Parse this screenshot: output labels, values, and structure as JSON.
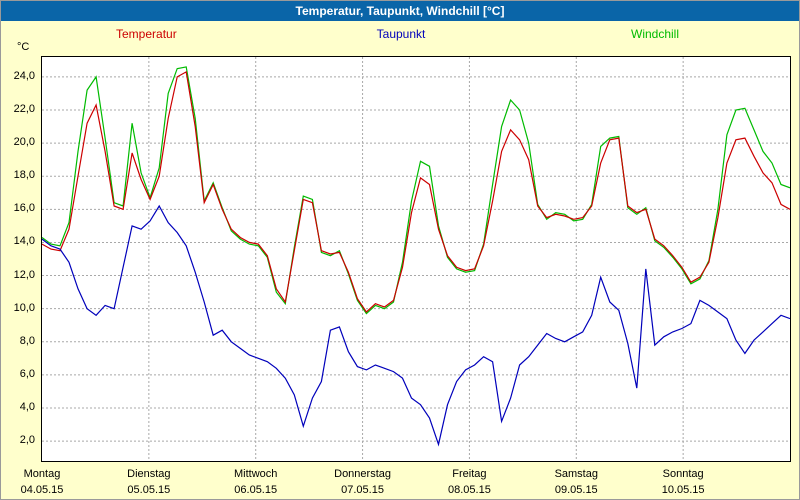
{
  "window": {
    "title": "Temperatur, Taupunkt, Windchill [°C]"
  },
  "legend": [
    {
      "label": "Temperatur",
      "color": "#cc0000"
    },
    {
      "label": "Taupunkt",
      "color": "#0000bb"
    },
    {
      "label": "Windchill",
      "color": "#00bb00"
    }
  ],
  "chart_data": {
    "type": "line",
    "title": "Temperatur, Taupunkt, Windchill [°C]",
    "xlabel": "",
    "ylabel": "°C",
    "ylim": [
      0.8,
      25.2
    ],
    "grid": true,
    "yticks": [
      "24,0",
      "22,0",
      "20,0",
      "18,0",
      "16,0",
      "14,0",
      "12,0",
      "10,0",
      "8,0",
      "6,0",
      "4,0",
      "2,0"
    ],
    "x_days": [
      {
        "weekday": "Montag",
        "date": "04.05.15"
      },
      {
        "weekday": "Dienstag",
        "date": "05.05.15"
      },
      {
        "weekday": "Mittwoch",
        "date": "06.05.15"
      },
      {
        "weekday": "Donnerstag",
        "date": "07.05.15"
      },
      {
        "weekday": "Freitag",
        "date": "08.05.15"
      },
      {
        "weekday": "Samstag",
        "date": "09.05.15"
      },
      {
        "weekday": "Sonntag",
        "date": "10.05.15"
      }
    ],
    "points_per_day": 12,
    "series": [
      {
        "name": "Windchill",
        "color": "#00bb00",
        "values": [
          14.3,
          13.9,
          13.8,
          15.2,
          19.5,
          23.2,
          24.0,
          20.3,
          16.4,
          16.2,
          21.2,
          18.2,
          16.7,
          18.5,
          23.0,
          24.5,
          24.6,
          21.5,
          16.5,
          17.6,
          16.1,
          14.7,
          14.2,
          13.9,
          13.8,
          13.1,
          11.0,
          10.3,
          13.7,
          16.8,
          16.6,
          13.4,
          13.2,
          13.5,
          12.1,
          10.5,
          9.7,
          10.2,
          10.0,
          10.4,
          12.8,
          16.5,
          18.9,
          18.6,
          15.0,
          13.1,
          12.4,
          12.2,
          12.3,
          13.9,
          17.5,
          21.0,
          22.6,
          22.0,
          20.0,
          16.3,
          15.4,
          15.8,
          15.7,
          15.3,
          15.4,
          16.3,
          19.8,
          20.3,
          20.4,
          16.1,
          15.7,
          16.1,
          14.1,
          13.7,
          13.1,
          12.4,
          11.5,
          11.8,
          12.9,
          16.0,
          20.5,
          22.0,
          22.1,
          20.8,
          19.5,
          18.8,
          17.5,
          17.3
        ]
      },
      {
        "name": "Temperatur",
        "color": "#cc0000",
        "values": [
          13.9,
          13.6,
          13.5,
          14.8,
          18.0,
          21.2,
          22.3,
          19.5,
          16.2,
          16.0,
          19.4,
          17.8,
          16.6,
          18.0,
          21.5,
          24.0,
          24.3,
          21.0,
          16.4,
          17.5,
          16.0,
          14.8,
          14.3,
          14.0,
          13.9,
          13.2,
          11.2,
          10.4,
          13.5,
          16.6,
          16.4,
          13.5,
          13.3,
          13.4,
          12.2,
          10.6,
          9.8,
          10.3,
          10.1,
          10.5,
          12.5,
          15.8,
          17.9,
          17.5,
          14.8,
          13.2,
          12.5,
          12.3,
          12.4,
          13.8,
          16.5,
          19.5,
          20.8,
          20.2,
          19.0,
          16.2,
          15.5,
          15.7,
          15.6,
          15.4,
          15.5,
          16.2,
          18.8,
          20.2,
          20.3,
          16.2,
          15.8,
          16.0,
          14.2,
          13.8,
          13.2,
          12.5,
          11.6,
          11.9,
          12.8,
          15.5,
          18.8,
          20.2,
          20.3,
          19.2,
          18.2,
          17.6,
          16.3,
          16.0
        ]
      },
      {
        "name": "Taupunkt",
        "color": "#0000bb",
        "values": [
          14.2,
          13.8,
          13.6,
          12.8,
          11.2,
          10.0,
          9.6,
          10.2,
          10.0,
          12.5,
          15.0,
          14.8,
          15.3,
          16.2,
          15.2,
          14.6,
          13.8,
          12.2,
          10.4,
          8.4,
          8.7,
          8.0,
          7.6,
          7.2,
          7.0,
          6.8,
          6.4,
          5.8,
          4.8,
          2.9,
          4.6,
          5.6,
          8.7,
          8.9,
          7.4,
          6.5,
          6.3,
          6.6,
          6.4,
          6.2,
          5.8,
          4.6,
          4.2,
          3.4,
          1.8,
          4.2,
          5.6,
          6.3,
          6.6,
          7.1,
          6.8,
          3.2,
          4.6,
          6.6,
          7.1,
          7.8,
          8.5,
          8.2,
          8.0,
          8.3,
          8.6,
          9.6,
          11.9,
          10.4,
          9.9,
          7.9,
          5.2,
          12.4,
          7.8,
          8.3,
          8.6,
          8.8,
          9.1,
          10.5,
          10.2,
          9.8,
          9.4,
          8.1,
          7.3,
          8.1,
          8.6,
          9.1,
          9.6,
          9.4
        ]
      }
    ]
  }
}
